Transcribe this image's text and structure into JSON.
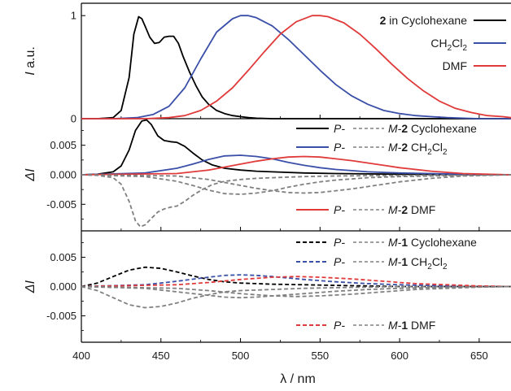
{
  "chart_data": [
    {
      "panel": "top",
      "type": "line",
      "ylabel": "I a.u.",
      "ylabel_parts": {
        "italic": "I",
        "rest": " a.u."
      },
      "yticks": [
        "0",
        "1"
      ],
      "ylim": [
        0,
        1.12
      ],
      "xlim": [
        400,
        670
      ],
      "series": [
        {
          "name": "2 in Cyclohexane",
          "legend": {
            "bold": "2",
            "rest": " in Cyclohexane"
          },
          "color": "#000000",
          "dash": "solid",
          "x": [
            400,
            410,
            420,
            425,
            430,
            433,
            436,
            438,
            440,
            443,
            446,
            449,
            452,
            455,
            458,
            461,
            464,
            468,
            472,
            476,
            480,
            485,
            490,
            495,
            500,
            505,
            510,
            520,
            530,
            540,
            670
          ],
          "y": [
            0,
            0,
            0.01,
            0.08,
            0.4,
            0.82,
            0.99,
            0.97,
            0.9,
            0.79,
            0.73,
            0.74,
            0.79,
            0.8,
            0.8,
            0.73,
            0.6,
            0.45,
            0.32,
            0.21,
            0.14,
            0.08,
            0.05,
            0.03,
            0.02,
            0.01,
            0.005,
            0,
            0,
            0,
            0
          ]
        },
        {
          "name": "CH2Cl2",
          "legend": {
            "pre": "CH",
            "sub1": "2",
            "mid": "Cl",
            "sub2": "2"
          },
          "color": "#3a4fa8",
          "dash": "solid",
          "x": [
            400,
            420,
            435,
            445,
            455,
            465,
            475,
            485,
            495,
            500,
            505,
            510,
            520,
            530,
            540,
            550,
            560,
            570,
            580,
            590,
            600,
            610,
            620,
            630,
            640,
            650,
            670
          ],
          "y": [
            0,
            0,
            0.01,
            0.04,
            0.12,
            0.3,
            0.58,
            0.84,
            0.97,
            1.0,
            1.0,
            0.98,
            0.9,
            0.77,
            0.62,
            0.47,
            0.33,
            0.22,
            0.14,
            0.08,
            0.05,
            0.03,
            0.02,
            0.01,
            0.005,
            0,
            0
          ]
        },
        {
          "name": "DMF",
          "legend": {
            "rest": "DMF"
          },
          "color": "#e03a3a",
          "dash": "solid",
          "x": [
            400,
            440,
            455,
            465,
            475,
            485,
            495,
            505,
            515,
            525,
            535,
            545,
            550,
            555,
            565,
            575,
            585,
            595,
            605,
            615,
            625,
            635,
            645,
            655,
            665,
            670
          ],
          "y": [
            0,
            0,
            0.01,
            0.03,
            0.08,
            0.17,
            0.3,
            0.47,
            0.65,
            0.82,
            0.94,
            1.0,
            1.0,
            0.99,
            0.93,
            0.82,
            0.68,
            0.53,
            0.39,
            0.27,
            0.17,
            0.1,
            0.06,
            0.03,
            0.02,
            0.01
          ]
        }
      ]
    },
    {
      "panel": "middle",
      "type": "line",
      "ylabel": "ΔI",
      "yticks": [
        "0.005",
        "0.000",
        "-0.005"
      ],
      "ylim": [
        -0.0095,
        0.0095
      ],
      "xlim": [
        400,
        670
      ],
      "legend": [
        {
          "p_label": "P-",
          "m_label": "M-2 Cyclohexane",
          "m_bold": "2",
          "m_rest": " Cyclohexane"
        },
        {
          "p_label": "P-",
          "m_label": "M-2 CH2Cl2",
          "m_bold": "2",
          "m_rest": " CH2Cl2"
        },
        {
          "p_label": "P-",
          "m_label": "M-2 DMF",
          "m_bold": "2",
          "m_rest": " DMF"
        }
      ],
      "series": [
        {
          "name": "P-2 Cyclohexane",
          "color": "#000000",
          "dash": "solid",
          "x": [
            400,
            410,
            420,
            425,
            430,
            434,
            438,
            441,
            444,
            448,
            452,
            456,
            460,
            465,
            470,
            476,
            482,
            490,
            500,
            510,
            520,
            540,
            560,
            600,
            670
          ],
          "y": [
            0,
            0.0001,
            0.0005,
            0.0015,
            0.0042,
            0.0075,
            0.0091,
            0.0093,
            0.0085,
            0.0066,
            0.0058,
            0.0056,
            0.0055,
            0.0048,
            0.0037,
            0.0025,
            0.0017,
            0.0011,
            0.0008,
            0.0006,
            0.0005,
            0.0003,
            0.0002,
            0.0001,
            0
          ]
        },
        {
          "name": "M-2 Cyclohexane",
          "color": "#808080",
          "dash": "dash",
          "x": [
            400,
            410,
            420,
            425,
            430,
            434,
            437,
            440,
            444,
            448,
            452,
            456,
            460,
            465,
            470,
            476,
            482,
            490,
            500,
            510,
            520,
            540,
            560,
            600,
            670
          ],
          "y": [
            0,
            -0.0001,
            -0.0005,
            -0.0016,
            -0.0045,
            -0.0078,
            -0.0088,
            -0.0085,
            -0.0074,
            -0.0063,
            -0.0058,
            -0.0055,
            -0.0053,
            -0.0045,
            -0.0035,
            -0.0025,
            -0.0017,
            -0.0011,
            -0.0008,
            -0.0006,
            -0.0005,
            -0.0003,
            -0.0002,
            -0.0001,
            0
          ]
        },
        {
          "name": "P-2 CH2Cl2",
          "color": "#3a4fa8",
          "dash": "solid",
          "x": [
            400,
            440,
            460,
            470,
            480,
            490,
            500,
            510,
            520,
            530,
            540,
            550,
            560,
            570,
            580,
            600,
            620,
            640,
            670
          ],
          "y": [
            0,
            0.0003,
            0.0011,
            0.0018,
            0.0026,
            0.0032,
            0.0033,
            0.0031,
            0.0027,
            0.0021,
            0.0016,
            0.0012,
            0.0009,
            0.0007,
            0.0005,
            0.0003,
            0.0002,
            0.0001,
            0
          ]
        },
        {
          "name": "M-2 CH2Cl2",
          "color": "#808080",
          "dash": "dash",
          "x": [
            400,
            440,
            460,
            470,
            480,
            490,
            500,
            510,
            520,
            530,
            540,
            550,
            560,
            570,
            580,
            600,
            620,
            640,
            670
          ],
          "y": [
            0,
            -0.0003,
            -0.0011,
            -0.0018,
            -0.0026,
            -0.0032,
            -0.0033,
            -0.0031,
            -0.0027,
            -0.0021,
            -0.0016,
            -0.0012,
            -0.0009,
            -0.0007,
            -0.0005,
            -0.0003,
            -0.0002,
            -0.0001,
            0
          ]
        },
        {
          "name": "P-2 DMF",
          "color": "#e03a3a",
          "dash": "solid",
          "x": [
            400,
            460,
            480,
            500,
            510,
            520,
            530,
            540,
            550,
            560,
            570,
            580,
            590,
            600,
            620,
            640,
            670
          ],
          "y": [
            0,
            0.0002,
            0.0008,
            0.0018,
            0.0023,
            0.0027,
            0.003,
            0.0031,
            0.003,
            0.0027,
            0.0024,
            0.002,
            0.0016,
            0.0012,
            0.0006,
            0.0002,
            0
          ]
        },
        {
          "name": "M-2 DMF",
          "color": "#808080",
          "dash": "dash",
          "x": [
            400,
            460,
            480,
            500,
            510,
            520,
            530,
            540,
            550,
            560,
            570,
            580,
            590,
            600,
            620,
            640,
            670
          ],
          "y": [
            0,
            -0.0002,
            -0.0008,
            -0.0018,
            -0.0023,
            -0.0027,
            -0.003,
            -0.0031,
            -0.003,
            -0.0027,
            -0.0024,
            -0.002,
            -0.0016,
            -0.0012,
            -0.0006,
            -0.0002,
            0
          ]
        }
      ]
    },
    {
      "panel": "bottom",
      "type": "line",
      "ylabel": "ΔI",
      "yticks": [
        "0.005",
        "0.000",
        "-0.005"
      ],
      "ylim": [
        -0.0095,
        0.0095
      ],
      "xlim": [
        400,
        670
      ],
      "xticks": [
        "400",
        "450",
        "500",
        "550",
        "600",
        "650"
      ],
      "xtick_values": [
        400,
        450,
        500,
        550,
        600,
        650
      ],
      "xlabel": "λ / nm",
      "legend": [
        {
          "p_label": "P-",
          "m_label": "M-1 Cyclohexane",
          "m_bold": "1",
          "m_rest": " Cyclohexane"
        },
        {
          "p_label": "P-",
          "m_label": "M-1 CH2Cl2",
          "m_bold": "1",
          "m_rest": " CH2Cl2"
        },
        {
          "p_label": "P-",
          "m_label": "M-1 DMF",
          "m_bold": "1",
          "m_rest": " DMF"
        }
      ],
      "series": [
        {
          "name": "P-1 Cyclohexane",
          "color": "#000000",
          "dash": "dash",
          "x": [
            400,
            410,
            420,
            430,
            440,
            450,
            460,
            470,
            480,
            490,
            500,
            520,
            540,
            560,
            580,
            600,
            630,
            670
          ],
          "y": [
            0,
            0.0006,
            0.0017,
            0.0028,
            0.0033,
            0.0031,
            0.0025,
            0.0018,
            0.0012,
            0.0008,
            0.0006,
            0.0004,
            0.0003,
            0.0002,
            0.0001,
            0,
            0,
            0
          ]
        },
        {
          "name": "M-1 Cyclohexane",
          "color": "#808080",
          "dash": "dash",
          "x": [
            400,
            410,
            420,
            430,
            440,
            450,
            460,
            470,
            480,
            490,
            500,
            520,
            540,
            560,
            580,
            600,
            630,
            670
          ],
          "y": [
            0,
            -0.0007,
            -0.0019,
            -0.0031,
            -0.0036,
            -0.0034,
            -0.0028,
            -0.002,
            -0.0014,
            -0.0009,
            -0.0007,
            -0.0005,
            -0.0003,
            -0.0002,
            -0.0001,
            0,
            0,
            0
          ]
        },
        {
          "name": "P-1 CH2Cl2",
          "color": "#3a4fa8",
          "dash": "dash",
          "x": [
            400,
            440,
            460,
            480,
            490,
            500,
            510,
            520,
            540,
            560,
            580,
            600,
            630,
            670
          ],
          "y": [
            0,
            0.0003,
            0.0009,
            0.0016,
            0.0019,
            0.002,
            0.0019,
            0.0017,
            0.0012,
            0.0008,
            0.0005,
            0.0003,
            0.0001,
            0
          ]
        },
        {
          "name": "M-1 CH2Cl2",
          "color": "#808080",
          "dash": "dash",
          "x": [
            400,
            440,
            460,
            480,
            490,
            500,
            510,
            520,
            540,
            560,
            580,
            600,
            630,
            670
          ],
          "y": [
            0,
            -0.0003,
            -0.0009,
            -0.0015,
            -0.0018,
            -0.0019,
            -0.0018,
            -0.0016,
            -0.0012,
            -0.0008,
            -0.0005,
            -0.0003,
            -0.0001,
            0
          ]
        },
        {
          "name": "P-1 DMF",
          "color": "#e03a3a",
          "dash": "dash",
          "x": [
            400,
            460,
            480,
            500,
            520,
            535,
            550,
            570,
            590,
            610,
            630,
            650,
            670
          ],
          "y": [
            0,
            0.0003,
            0.0007,
            0.0012,
            0.0016,
            0.0017,
            0.0016,
            0.0013,
            0.0009,
            0.0005,
            0.0003,
            0.0001,
            0
          ]
        },
        {
          "name": "M-1 DMF",
          "color": "#808080",
          "dash": "dash",
          "x": [
            400,
            460,
            480,
            500,
            520,
            535,
            550,
            570,
            590,
            610,
            630,
            650,
            670
          ],
          "y": [
            0,
            -0.0003,
            -0.0007,
            -0.0012,
            -0.0016,
            -0.0017,
            -0.0016,
            -0.0013,
            -0.0009,
            -0.0005,
            -0.0003,
            -0.0001,
            0
          ]
        }
      ]
    }
  ]
}
